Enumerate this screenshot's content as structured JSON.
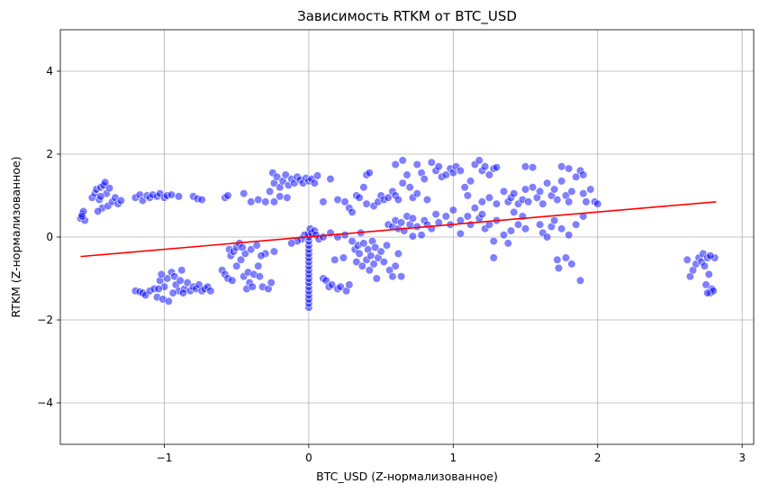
{
  "chart_data": {
    "type": "scatter",
    "title": "Зависимость RTKM от BTC_USD",
    "xlabel": "BTC_USD (Z-нормализованное)",
    "ylabel": "RTKM (Z-нормализованное)",
    "xlim": [
      -1.72,
      3.08
    ],
    "ylim": [
      -5,
      5
    ],
    "xticks": [
      {
        "value": -1,
        "label": "−1"
      },
      {
        "value": 0,
        "label": "0"
      },
      {
        "value": 1,
        "label": "1"
      },
      {
        "value": 2,
        "label": "2"
      },
      {
        "value": 3,
        "label": "3"
      }
    ],
    "yticks": [
      {
        "value": -4,
        "label": "−4"
      },
      {
        "value": -2,
        "label": "−2"
      },
      {
        "value": 0,
        "label": "0"
      },
      {
        "value": 2,
        "label": "2"
      },
      {
        "value": 4,
        "label": "4"
      }
    ],
    "grid": true,
    "point_color": "#0000ff",
    "line_color": "#ff0000",
    "regression_line": {
      "x": [
        -1.58,
        2.82
      ],
      "y": [
        -0.47,
        0.85
      ]
    },
    "points": [
      [
        -1.58,
        0.45
      ],
      [
        -1.57,
        0.55
      ],
      [
        -1.56,
        0.62
      ],
      [
        -1.55,
        0.4
      ],
      [
        -1.57,
        0.5
      ],
      [
        -1.5,
        0.95
      ],
      [
        -1.48,
        1.05
      ],
      [
        -1.47,
        1.15
      ],
      [
        -1.45,
        0.9
      ],
      [
        -1.44,
        1.2
      ],
      [
        -1.43,
        0.7
      ],
      [
        -1.42,
        1.25
      ],
      [
        -1.41,
        1.32
      ],
      [
        -1.4,
        1.05
      ],
      [
        -1.39,
        0.75
      ],
      [
        -1.38,
        1.18
      ],
      [
        -1.36,
        0.85
      ],
      [
        -1.34,
        0.95
      ],
      [
        -1.32,
        0.8
      ],
      [
        -1.3,
        0.88
      ],
      [
        -1.46,
        0.62
      ],
      [
        -1.44,
        0.98
      ],
      [
        -1.2,
        0.95
      ],
      [
        -1.17,
        1.02
      ],
      [
        -1.15,
        0.88
      ],
      [
        -1.12,
        1.0
      ],
      [
        -1.1,
        0.95
      ],
      [
        -1.08,
        1.02
      ],
      [
        -1.05,
        0.98
      ],
      [
        -1.03,
        1.05
      ],
      [
        -1.0,
        0.95
      ],
      [
        -0.98,
        1.0
      ],
      [
        -0.95,
        1.02
      ],
      [
        -0.9,
        0.98
      ],
      [
        -0.8,
        0.98
      ],
      [
        -0.77,
        0.92
      ],
      [
        -0.74,
        0.9
      ],
      [
        -1.2,
        -1.3
      ],
      [
        -1.17,
        -1.32
      ],
      [
        -1.15,
        -1.35
      ],
      [
        -1.13,
        -1.4
      ],
      [
        -1.1,
        -1.3
      ],
      [
        -1.07,
        -1.25
      ],
      [
        -1.05,
        -1.45
      ],
      [
        -1.03,
        -1.05
      ],
      [
        -1.01,
        -1.5
      ],
      [
        -1.0,
        -1.2
      ],
      [
        -0.98,
        -1.0
      ],
      [
        -0.97,
        -1.55
      ],
      [
        -0.95,
        -0.85
      ],
      [
        -0.93,
        -0.95
      ],
      [
        -0.92,
        -1.15
      ],
      [
        -0.9,
        -1.3
      ],
      [
        -0.88,
        -0.8
      ],
      [
        -0.86,
        -1.25
      ],
      [
        -0.84,
        -1.1
      ],
      [
        -0.82,
        -1.3
      ],
      [
        -0.8,
        -1.2
      ],
      [
        -0.78,
        -1.25
      ],
      [
        -0.76,
        -1.15
      ],
      [
        -0.74,
        -1.3
      ],
      [
        -0.72,
        -1.25
      ],
      [
        -0.7,
        -1.2
      ],
      [
        -0.68,
        -1.3
      ],
      [
        -0.94,
        -1.35
      ],
      [
        -0.89,
        -1.05
      ],
      [
        -0.87,
        -1.35
      ],
      [
        -1.04,
        -1.25
      ],
      [
        -1.02,
        -0.9
      ],
      [
        -0.58,
        0.95
      ],
      [
        -0.56,
        1.0
      ],
      [
        -0.6,
        -0.8
      ],
      [
        -0.58,
        -0.9
      ],
      [
        -0.56,
        -1.0
      ],
      [
        -0.55,
        -0.3
      ],
      [
        -0.54,
        -0.45
      ],
      [
        -0.53,
        -1.05
      ],
      [
        -0.52,
        -0.35
      ],
      [
        -0.5,
        -0.25
      ],
      [
        -0.48,
        -0.15
      ],
      [
        -0.47,
        -0.55
      ],
      [
        -0.45,
        -0.95
      ],
      [
        -0.44,
        -0.4
      ],
      [
        -0.42,
        -0.85
      ],
      [
        -0.41,
        -1.1
      ],
      [
        -0.4,
        -0.3
      ],
      [
        -0.38,
        -0.9
      ],
      [
        -0.36,
        -0.2
      ],
      [
        -0.35,
        -0.7
      ],
      [
        -0.34,
        -0.95
      ],
      [
        -0.32,
        -1.2
      ],
      [
        -0.3,
        -0.4
      ],
      [
        -0.28,
        -1.25
      ],
      [
        -0.26,
        -1.1
      ],
      [
        -0.24,
        -0.35
      ],
      [
        -0.5,
        -0.7
      ],
      [
        -0.46,
        -0.25
      ],
      [
        -0.43,
        -1.25
      ],
      [
        -0.39,
        -1.2
      ],
      [
        -0.33,
        -0.45
      ],
      [
        -0.45,
        1.05
      ],
      [
        -0.4,
        0.85
      ],
      [
        -0.35,
        0.9
      ],
      [
        -0.3,
        0.85
      ],
      [
        -0.27,
        1.1
      ],
      [
        -0.25,
        1.55
      ],
      [
        -0.24,
        1.3
      ],
      [
        -0.22,
        1.45
      ],
      [
        -0.2,
        1.2
      ],
      [
        -0.18,
        1.35
      ],
      [
        -0.16,
        1.5
      ],
      [
        -0.14,
        1.25
      ],
      [
        -0.12,
        1.4
      ],
      [
        -0.1,
        1.3
      ],
      [
        -0.08,
        1.45
      ],
      [
        -0.06,
        1.38
      ],
      [
        -0.04,
        1.3
      ],
      [
        -0.02,
        1.42
      ],
      [
        0.0,
        1.35
      ],
      [
        0.02,
        1.4
      ],
      [
        0.04,
        1.3
      ],
      [
        0.06,
        1.48
      ],
      [
        -0.24,
        0.85
      ],
      [
        -0.2,
        0.98
      ],
      [
        -0.15,
        0.95
      ],
      [
        0.0,
        -1.7
      ],
      [
        0.0,
        -1.6
      ],
      [
        0.0,
        -1.5
      ],
      [
        0.0,
        -1.4
      ],
      [
        0.0,
        -1.3
      ],
      [
        0.0,
        -1.2
      ],
      [
        0.0,
        -1.1
      ],
      [
        0.0,
        -1.0
      ],
      [
        0.0,
        -0.9
      ],
      [
        0.0,
        -0.8
      ],
      [
        0.0,
        -0.7
      ],
      [
        0.0,
        -0.6
      ],
      [
        0.0,
        -0.5
      ],
      [
        0.0,
        -0.4
      ],
      [
        0.0,
        -0.3
      ],
      [
        0.0,
        -0.2
      ],
      [
        0.0,
        -0.1
      ],
      [
        0.0,
        0.0
      ],
      [
        0.0,
        0.1
      ],
      [
        0.01,
        0.2
      ],
      [
        0.02,
        0.1
      ],
      [
        0.04,
        0.15
      ],
      [
        0.05,
        0.05
      ],
      [
        0.07,
        -0.05
      ],
      [
        -0.03,
        0.05
      ],
      [
        -0.05,
        -0.05
      ],
      [
        -0.08,
        -0.1
      ],
      [
        -0.12,
        -0.15
      ],
      [
        0.1,
        0.0
      ],
      [
        0.1,
        -1.0
      ],
      [
        0.12,
        -1.05
      ],
      [
        0.14,
        -1.2
      ],
      [
        0.16,
        -1.15
      ],
      [
        0.18,
        -0.55
      ],
      [
        0.2,
        -1.25
      ],
      [
        0.22,
        -1.2
      ],
      [
        0.24,
        -0.5
      ],
      [
        0.26,
        -1.3
      ],
      [
        0.28,
        -1.15
      ],
      [
        0.3,
        -0.1
      ],
      [
        0.32,
        -0.3
      ],
      [
        0.33,
        -0.6
      ],
      [
        0.34,
        -0.2
      ],
      [
        0.35,
        -0.4
      ],
      [
        0.36,
        0.1
      ],
      [
        0.37,
        -0.7
      ],
      [
        0.38,
        -0.15
      ],
      [
        0.4,
        -0.55
      ],
      [
        0.41,
        -0.3
      ],
      [
        0.42,
        -0.8
      ],
      [
        0.43,
        -0.45
      ],
      [
        0.44,
        -0.1
      ],
      [
        0.45,
        -0.65
      ],
      [
        0.46,
        -0.25
      ],
      [
        0.47,
        -1.0
      ],
      [
        0.48,
        -0.5
      ],
      [
        0.5,
        -0.35
      ],
      [
        0.52,
        -0.6
      ],
      [
        0.54,
        -0.2
      ],
      [
        0.56,
        -0.8
      ],
      [
        0.58,
        -0.95
      ],
      [
        0.6,
        -0.7
      ],
      [
        0.62,
        -0.4
      ],
      [
        0.64,
        -0.95
      ],
      [
        0.2,
        0.0
      ],
      [
        0.25,
        0.05
      ],
      [
        0.15,
        0.1
      ],
      [
        0.1,
        0.85
      ],
      [
        0.15,
        1.4
      ],
      [
        0.2,
        0.9
      ],
      [
        0.25,
        0.85
      ],
      [
        0.28,
        0.7
      ],
      [
        0.3,
        0.6
      ],
      [
        0.33,
        1.0
      ],
      [
        0.35,
        0.95
      ],
      [
        0.38,
        1.2
      ],
      [
        0.4,
        1.5
      ],
      [
        0.4,
        0.8
      ],
      [
        0.42,
        1.55
      ],
      [
        0.45,
        0.75
      ],
      [
        0.48,
        0.85
      ],
      [
        0.5,
        1.0
      ],
      [
        0.52,
        0.9
      ],
      [
        0.55,
        0.95
      ],
      [
        0.58,
        1.1
      ],
      [
        0.6,
        1.0
      ],
      [
        0.62,
        0.9
      ],
      [
        0.65,
        1.3
      ],
      [
        0.68,
        1.5
      ],
      [
        0.7,
        1.2
      ],
      [
        0.72,
        0.95
      ],
      [
        0.75,
        1.05
      ],
      [
        0.78,
        1.55
      ],
      [
        0.8,
        1.4
      ],
      [
        0.82,
        0.9
      ],
      [
        0.85,
        1.8
      ],
      [
        0.88,
        1.6
      ],
      [
        0.9,
        1.7
      ],
      [
        0.92,
        1.45
      ],
      [
        0.95,
        1.5
      ],
      [
        0.98,
        1.65
      ],
      [
        1.0,
        1.55
      ],
      [
        1.02,
        1.7
      ],
      [
        1.05,
        1.6
      ],
      [
        1.08,
        1.2
      ],
      [
        1.1,
        1.0
      ],
      [
        1.12,
        1.35
      ],
      [
        1.15,
        1.75
      ],
      [
        1.18,
        1.85
      ],
      [
        1.2,
        1.6
      ],
      [
        1.22,
        1.7
      ],
      [
        1.25,
        1.5
      ],
      [
        1.28,
        1.65
      ],
      [
        1.3,
        1.68
      ],
      [
        0.6,
        1.75
      ],
      [
        0.65,
        1.85
      ],
      [
        0.75,
        1.75
      ],
      [
        0.55,
        0.3
      ],
      [
        0.58,
        0.25
      ],
      [
        0.6,
        0.4
      ],
      [
        0.62,
        0.2
      ],
      [
        0.64,
        0.35
      ],
      [
        0.66,
        0.15
      ],
      [
        0.68,
        0.5
      ],
      [
        0.7,
        0.3
      ],
      [
        0.72,
        0.45
      ],
      [
        0.75,
        0.25
      ],
      [
        0.78,
        0.05
      ],
      [
        0.8,
        0.4
      ],
      [
        0.82,
        0.3
      ],
      [
        0.85,
        0.2
      ],
      [
        0.88,
        0.55
      ],
      [
        0.9,
        0.35
      ],
      [
        0.95,
        0.5
      ],
      [
        0.98,
        0.3
      ],
      [
        1.0,
        0.65
      ],
      [
        1.05,
        0.4
      ],
      [
        1.1,
        0.5
      ],
      [
        1.12,
        0.3
      ],
      [
        1.15,
        0.7
      ],
      [
        1.18,
        0.45
      ],
      [
        1.2,
        0.55
      ],
      [
        1.22,
        0.2
      ],
      [
        1.25,
        0.3
      ],
      [
        1.28,
        -0.1
      ],
      [
        1.3,
        0.4
      ],
      [
        1.35,
        0.05
      ],
      [
        1.38,
        -0.15
      ],
      [
        1.4,
        0.15
      ],
      [
        1.42,
        0.6
      ],
      [
        1.45,
        0.3
      ],
      [
        1.48,
        0.5
      ],
      [
        1.5,
        0.2
      ],
      [
        1.28,
        -0.5
      ],
      [
        1.05,
        0.08
      ],
      [
        0.72,
        0.02
      ],
      [
        1.2,
        0.85
      ],
      [
        1.25,
        0.95
      ],
      [
        1.3,
        0.8
      ],
      [
        1.35,
        1.1
      ],
      [
        1.38,
        0.85
      ],
      [
        1.4,
        0.95
      ],
      [
        1.42,
        1.05
      ],
      [
        1.45,
        0.8
      ],
      [
        1.48,
        0.9
      ],
      [
        1.5,
        1.15
      ],
      [
        1.52,
        0.85
      ],
      [
        1.55,
        1.2
      ],
      [
        1.58,
        0.95
      ],
      [
        1.6,
        1.1
      ],
      [
        1.62,
        0.8
      ],
      [
        1.65,
        1.3
      ],
      [
        1.68,
        1.0
      ],
      [
        1.7,
        1.15
      ],
      [
        1.72,
        0.9
      ],
      [
        1.75,
        1.35
      ],
      [
        1.78,
        1.0
      ],
      [
        1.8,
        0.85
      ],
      [
        1.82,
        1.1
      ],
      [
        1.85,
        1.45
      ],
      [
        1.88,
        1.6
      ],
      [
        1.9,
        1.05
      ],
      [
        1.92,
        0.85
      ],
      [
        1.95,
        1.15
      ],
      [
        1.98,
        0.85
      ],
      [
        2.0,
        0.8
      ],
      [
        1.5,
        1.7
      ],
      [
        1.55,
        1.68
      ],
      [
        1.75,
        1.7
      ],
      [
        1.8,
        1.65
      ],
      [
        1.9,
        1.5
      ],
      [
        1.6,
        0.3
      ],
      [
        1.62,
        0.1
      ],
      [
        1.65,
        0.0
      ],
      [
        1.68,
        0.25
      ],
      [
        1.7,
        0.4
      ],
      [
        1.72,
        -0.55
      ],
      [
        1.73,
        -0.75
      ],
      [
        1.75,
        0.2
      ],
      [
        1.78,
        -0.5
      ],
      [
        1.8,
        0.05
      ],
      [
        1.82,
        -0.65
      ],
      [
        1.85,
        0.3
      ],
      [
        1.88,
        -1.05
      ],
      [
        1.9,
        0.5
      ],
      [
        2.62,
        -0.55
      ],
      [
        2.64,
        -0.95
      ],
      [
        2.66,
        -0.8
      ],
      [
        2.68,
        -0.65
      ],
      [
        2.7,
        -0.5
      ],
      [
        2.72,
        -0.6
      ],
      [
        2.73,
        -0.4
      ],
      [
        2.74,
        -0.7
      ],
      [
        2.75,
        -1.15
      ],
      [
        2.76,
        -0.5
      ],
      [
        2.77,
        -0.9
      ],
      [
        2.78,
        -1.35
      ],
      [
        2.79,
        -1.25
      ],
      [
        2.8,
        -1.3
      ],
      [
        2.81,
        -0.5
      ],
      [
        2.76,
        -1.35
      ],
      [
        2.78,
        -0.45
      ]
    ]
  }
}
